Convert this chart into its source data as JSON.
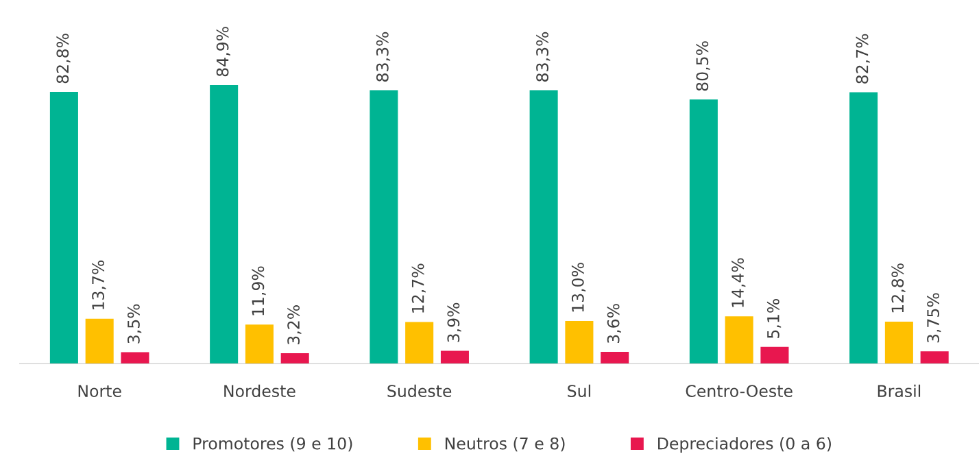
{
  "chart_data": {
    "type": "bar",
    "categories": [
      "Norte",
      "Nordeste",
      "Sudeste",
      "Sul",
      "Centro-Oeste",
      "Brasil"
    ],
    "series": [
      {
        "name": "Promotores (9 e 10)",
        "color": "#00b493",
        "values": [
          82.8,
          84.9,
          83.3,
          83.3,
          80.5,
          82.7
        ],
        "value_labels": [
          "82,8%",
          "84,9%",
          "83,3%",
          "83,3%",
          "80,5%",
          "82,7%"
        ]
      },
      {
        "name": "Neutros (7 e 8)",
        "color": "#ffc000",
        "values": [
          13.7,
          11.9,
          12.7,
          13.0,
          14.4,
          12.8
        ],
        "value_labels": [
          "13,7%",
          "11,9%",
          "12,7%",
          "13,0%",
          "14,4%",
          "12,8%"
        ]
      },
      {
        "name": "Depreciadores (0 a 6)",
        "color": "#e8174f",
        "values": [
          3.5,
          3.2,
          3.9,
          3.6,
          5.1,
          3.75
        ],
        "value_labels": [
          "3,5%",
          "3,2%",
          "3,9%",
          "3,6%",
          "5,1%",
          "3,75%"
        ]
      }
    ],
    "tick_labels": "x",
    "grid": false,
    "legend": "bottom"
  }
}
